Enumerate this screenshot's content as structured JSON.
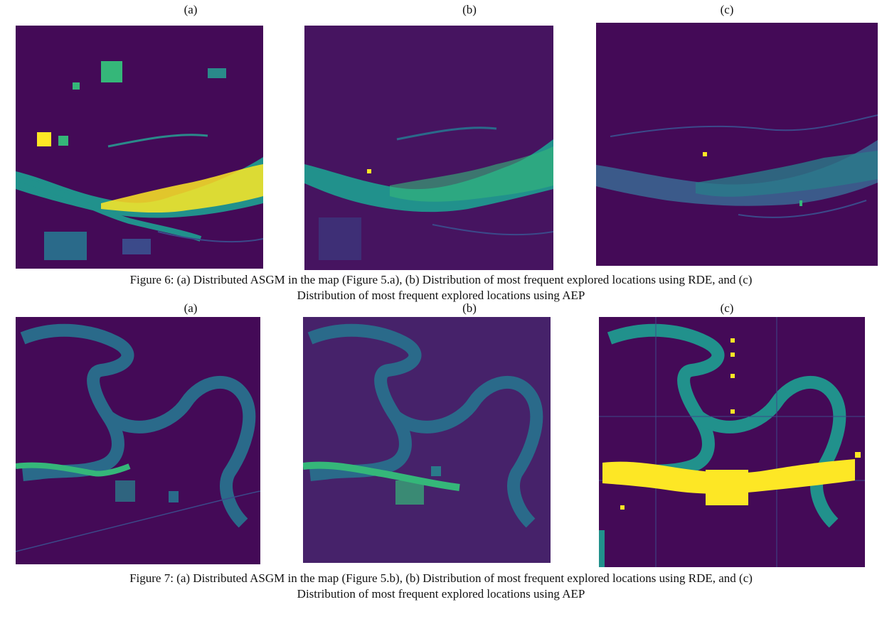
{
  "figure6": {
    "panel_labels": [
      "(a)",
      "(b)",
      "(c)"
    ],
    "caption_line1": "Figure 6: (a) Distributed ASGM in the map (Figure 5.a), (b) Distribution of most frequent explored locations using RDE, and (c)",
    "caption_line2": "Distribution of most frequent explored locations using AEP"
  },
  "figure7": {
    "panel_labels": [
      "(a)",
      "(b)",
      "(c)"
    ],
    "caption_line1": "Figure 7: (a) Distributed ASGM in the map (Figure 5.b), (b) Distribution of most frequent explored locations using RDE, and (c)",
    "caption_line2": "Distribution of most frequent explored locations using AEP"
  },
  "colors": {
    "background": "#440a57",
    "low": "#3b2f7a",
    "mid": "#2a8a8a",
    "teal": "#21918c",
    "high": "#fde725"
  }
}
